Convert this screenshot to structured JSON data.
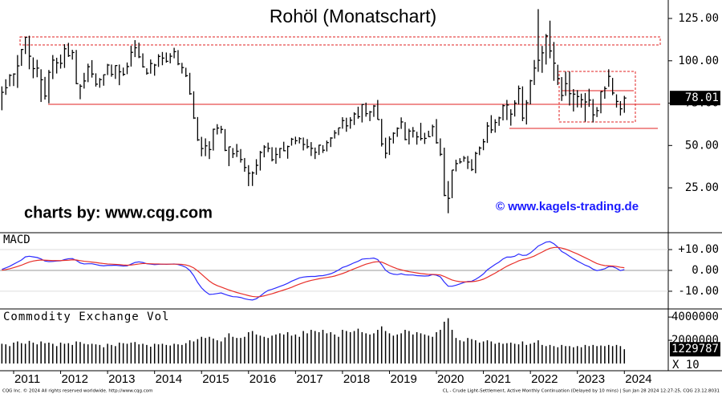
{
  "chart_data": [
    {
      "type": "ohlc",
      "title": "Rohöl (Monatschart)",
      "color": "#000000",
      "annotations": [
        "charts by: www.cqg.com",
        "© www.kagels-trading.de"
      ],
      "categories": [
        null,
        null,
        null,
        "2011",
        null,
        null,
        null,
        null,
        null,
        null,
        null,
        null,
        null,
        null,
        null,
        "2012",
        null,
        null,
        null,
        null,
        null,
        null,
        null,
        null,
        null,
        null,
        null,
        "2013",
        null,
        null,
        null,
        null,
        null,
        null,
        null,
        null,
        null,
        null,
        null,
        "2014",
        null,
        null,
        null,
        null,
        null,
        null,
        null,
        null,
        null,
        null,
        null,
        "2015",
        null,
        null,
        null,
        null,
        null,
        null,
        null,
        null,
        null,
        null,
        null,
        "2016",
        null,
        null,
        null,
        null,
        null,
        null,
        null,
        null,
        null,
        null,
        null,
        "2017",
        null,
        null,
        null,
        null,
        null,
        null,
        null,
        null,
        null,
        null,
        null,
        "2018",
        null,
        null,
        null,
        null,
        null,
        null,
        null,
        null,
        null,
        null,
        null,
        "2019",
        null,
        null,
        null,
        null,
        null,
        null,
        null,
        null,
        null,
        null,
        null,
        "2020",
        null,
        null,
        null,
        null,
        null,
        null,
        null,
        null,
        null,
        null,
        null,
        "2021",
        null,
        null,
        null,
        null,
        null,
        null,
        null,
        null,
        null,
        null,
        null,
        "2022",
        null,
        null,
        null,
        null,
        null,
        null,
        null,
        null,
        null,
        null,
        null,
        "2023",
        null,
        null,
        null,
        null,
        null,
        null,
        null,
        null,
        null,
        null,
        null,
        "2024"
      ],
      "high": [
        84.9,
        89.1,
        92.1,
        92.6,
        103.4,
        107,
        114,
        114.8,
        102,
        100.6,
        95,
        90.5,
        94.6,
        103.4,
        101.8,
        103.7,
        109.8,
        110.6,
        106.5,
        106.4,
        86.2,
        92.9,
        98.3,
        100.4,
        92.6,
        89.8,
        91.9,
        98.2,
        97.8,
        97.4,
        97.8,
        96,
        99,
        108.9,
        112.2,
        110.7,
        104.4,
        95.6,
        100.8,
        98.2,
        103.9,
        105.2,
        104.9,
        104.5,
        107.7,
        106.3,
        98.8,
        95.9,
        92.9,
        82,
        66.8,
        55.1,
        54.2,
        52.5,
        59.9,
        62.6,
        61.6,
        59.7,
        49.3,
        48.5,
        50.9,
        47.9,
        42.6,
        38.4,
        34.7,
        41.9,
        46.8,
        50.2,
        51.7,
        49,
        48.8,
        48.5,
        52.2,
        49.9,
        54.5,
        55.2,
        54.9,
        54.7,
        53.8,
        52,
        48.8,
        50.4,
        50.2,
        52.9,
        54.9,
        59,
        60.5,
        66.7,
        66.4,
        66.7,
        69.6,
        72.9,
        74.5,
        75.3,
        70.4,
        73.9,
        76.9,
        65.7,
        54.6,
        55.4,
        57.8,
        60.7,
        66.6,
        63.8,
        59.9,
        60.9,
        58.1,
        63.4,
        57.5,
        58.7,
        62.3,
        65.6,
        54.2,
        48.7,
        29,
        35.5,
        41.6,
        42.5,
        43.8,
        43.8,
        41.9,
        46.3,
        49.4,
        53.9,
        63.8,
        67.9,
        65.5,
        67,
        74.2,
        76.9,
        71.4,
        76.7,
        85.4,
        84.9,
        76.8,
        88.8,
        100.5,
        130.5,
        108.8,
        115.8,
        123.7,
        111.1,
        97.7,
        90.4,
        93.6,
        93.7,
        83.3,
        82.7,
        80.6,
        81,
        83.5,
        77.4,
        72.7,
        82,
        84.9,
        95,
        89.9,
        80.2,
        76.2,
        79.3
      ],
      "low": [
        70.8,
        79.9,
        84.9,
        85.1,
        84,
        97,
        104,
        95,
        89.7,
        90.3,
        75.7,
        77.1,
        74.9,
        89.2,
        92.5,
        95.4,
        95.8,
        102.3,
        100.7,
        86.2,
        77.3,
        83.6,
        87.4,
        90.1,
        84.8,
        84.1,
        85.3,
        91.6,
        90.6,
        89.3,
        85.6,
        91.1,
        92.1,
        96.6,
        102.2,
        101.6,
        96,
        91.8,
        92.4,
        91.2,
        96.4,
        97.4,
        98.9,
        98.5,
        101.5,
        97.4,
        92.5,
        90.4,
        80,
        65.7,
        52.7,
        43.6,
        43.7,
        42,
        47,
        56.5,
        57.1,
        46.7,
        37.8,
        42.6,
        43.2,
        39.9,
        34.5,
        26,
        26.1,
        32.7,
        35.2,
        43,
        46.1,
        40.6,
        39.2,
        42.5,
        46.6,
        42.2,
        49.9,
        50.7,
        51.2,
        47.1,
        48.2,
        43.8,
        42,
        44.4,
        45.6,
        46.5,
        49.1,
        54.1,
        56.1,
        59.9,
        58.1,
        59.9,
        62.1,
        65.8,
        63.6,
        67,
        64.4,
        66.9,
        65.3,
        49.4,
        42.4,
        44.4,
        51.2,
        55.1,
        59.8,
        53.1,
        50.6,
        54.7,
        50.5,
        52.9,
        50.9,
        55,
        55.3,
        51.1,
        43.8,
        20.1,
        10,
        18.9,
        34.7,
        39.3,
        40.4,
        36.1,
        34.9,
        33.6,
        44.3,
        47.2,
        51.5,
        57.3,
        57.6,
        61.6,
        64.8,
        65,
        61.7,
        67.1,
        74.2,
        64.4,
        62.4,
        74.3,
        85.7,
        93.5,
        92.9,
        97.8,
        101.5,
        88.2,
        85.7,
        76.3,
        79.3,
        73.6,
        70.1,
        72.5,
        72.3,
        64.1,
        72.8,
        63.6,
        66.8,
        69,
        77.6,
        84.6,
        79.7,
        72.4,
        67.7,
        69.3
      ],
      "close": [
        81.4,
        84.1,
        91.4,
        92.2,
        97,
        106.7,
        113.9,
        102.7,
        95.4,
        95.7,
        88.8,
        79.2,
        93.2,
        100.4,
        98.8,
        98.5,
        107.1,
        103,
        104.9,
        86.5,
        85,
        88.1,
        96.5,
        92.2,
        86.2,
        88.9,
        91.8,
        97.5,
        92,
        97.2,
        93.5,
        92,
        96.6,
        105,
        107.7,
        102.3,
        96.4,
        92.7,
        98.4,
        97.5,
        102.6,
        101.6,
        99.7,
        102.7,
        105.4,
        98.2,
        96,
        91.2,
        80.5,
        66.2,
        53.3,
        48.2,
        49.8,
        47.6,
        59.6,
        60.3,
        59.5,
        47.1,
        49.2,
        45.1,
        46.6,
        41.7,
        37,
        33.6,
        33.8,
        38.3,
        45.9,
        49.1,
        48.3,
        41.6,
        44.7,
        48.2,
        46.9,
        49.4,
        53.7,
        52.8,
        54,
        50.6,
        49.3,
        48.3,
        46,
        50.2,
        47.2,
        51.7,
        54.4,
        57.4,
        60.4,
        64.7,
        61.6,
        64.9,
        68.6,
        67,
        74.2,
        68.8,
        69.8,
        73.3,
        65.3,
        50.9,
        45.4,
        53.8,
        57.2,
        60.1,
        63.9,
        53.5,
        58.5,
        58.6,
        55.1,
        54.1,
        54.2,
        55.2,
        61.1,
        51.6,
        44.8,
        20.5,
        18.8,
        35.5,
        39.3,
        40.3,
        42.6,
        40.2,
        35.8,
        45.3,
        48.5,
        52.2,
        61.5,
        59.2,
        63.6,
        66.3,
        73.5,
        73.9,
        68.5,
        75,
        83.6,
        66.2,
        75.2,
        88.2,
        95.7,
        100.3,
        104.7,
        114.7,
        105.8,
        98.6,
        89.6,
        79.5,
        86.5,
        80.6,
        80.3,
        78.9,
        77,
        75.7,
        76.8,
        68.1,
        70.6,
        81.8,
        83.6,
        90.8,
        81,
        76,
        71.65,
        78.01
      ],
      "ylim": [
        -1.5,
        135.9
      ],
      "yticks": [
        {
          "value": 25,
          "label": "25.00"
        },
        {
          "value": 50,
          "label": "50.00"
        },
        {
          "value": 75,
          "label": "75.00"
        },
        {
          "value": 100,
          "label": "100.00"
        },
        {
          "value": 125,
          "label": "125.00"
        }
      ]
    },
    {
      "type": "line",
      "title": "MACD",
      "series": [
        {
          "color": "#2b2bff",
          "values": [
            0.5,
            1.2,
            2.0,
            3,
            4,
            5,
            6.5,
            6.8,
            6.5,
            6.2,
            5.5,
            4.5,
            4.2,
            4.3,
            4.5,
            4.6,
            5.2,
            5.6,
            5.7,
            4.8,
            3.6,
            3.1,
            3.2,
            3.2,
            2.8,
            2.4,
            2.2,
            2.4,
            2.4,
            2.5,
            2.3,
            2.1,
            2.2,
            3,
            3.8,
            4.1,
            3.8,
            3.2,
            3,
            2.8,
            2.9,
            3,
            2.9,
            3,
            3.1,
            2.8,
            2.3,
            1.5,
            0,
            -2.5,
            -5.8,
            -8.4,
            -10.2,
            -11.5,
            -11.4,
            -11.1,
            -10.8,
            -11.5,
            -12.1,
            -12.6,
            -12.7,
            -13,
            -13.6,
            -14,
            -14.2,
            -13.6,
            -12.3,
            -10.8,
            -9.6,
            -9.1,
            -8.4,
            -7.7,
            -7,
            -6.2,
            -5.2,
            -4.4,
            -3.6,
            -3.2,
            -3,
            -2.9,
            -2.9,
            -2.6,
            -2.5,
            -2.1,
            -1.6,
            -0.8,
            0.2,
            1.4,
            2,
            2.8,
            3.7,
            4.4,
            5.4,
            5.6,
            5.7,
            5.9,
            5.2,
            2.8,
            0.1,
            -1.2,
            -1.8,
            -2,
            -1.6,
            -2.1,
            -2.2,
            -2.2,
            -2.5,
            -2.6,
            -2.7,
            -2.6,
            -2,
            -2.3,
            -3.1,
            -5.6,
            -7.6,
            -7.6,
            -7.1,
            -6.5,
            -5.8,
            -5.3,
            -5.2,
            -4.3,
            -3.1,
            -1.7,
            0.3,
            1.6,
            2.9,
            4,
            5.5,
            6.4,
            6.4,
            6.8,
            7.9,
            7.2,
            7.3,
            8.4,
            10,
            11.7,
            12.6,
            13.6,
            13.8,
            12.8,
            11.2,
            9.1,
            8.1,
            6.8,
            5.6,
            4.5,
            3.5,
            2.5,
            1.8,
            0.6,
            -0.1,
            0.3,
            0.8,
            1.8,
            1.8,
            1.0,
            -0.1,
            0.4
          ]
        },
        {
          "color": "#e8302a",
          "values": [
            0.1,
            0.4,
            0.8,
            1.3,
            1.9,
            2.5,
            3.3,
            4,
            4.5,
            4.8,
            5,
            4.9,
            4.8,
            4.7,
            4.7,
            4.7,
            4.8,
            4.9,
            5.1,
            5,
            4.7,
            4.4,
            4.2,
            4,
            3.8,
            3.5,
            3.3,
            3.1,
            3,
            2.9,
            2.8,
            2.6,
            2.5,
            2.6,
            2.8,
            3.1,
            3.3,
            3.3,
            3.2,
            3.1,
            3.1,
            3,
            3,
            3,
            3,
            3,
            2.9,
            2.6,
            2.1,
            1.2,
            -0.2,
            -1.8,
            -3.5,
            -5.1,
            -6.4,
            -7.3,
            -8,
            -8.7,
            -9.4,
            -10,
            -10.6,
            -11.1,
            -11.6,
            -12.1,
            -12.5,
            -12.7,
            -12.6,
            -12.2,
            -11.7,
            -11.2,
            -10.6,
            -10,
            -9.4,
            -8.8,
            -8.1,
            -7.3,
            -6.6,
            -5.9,
            -5.3,
            -4.8,
            -4.4,
            -4,
            -3.7,
            -3.4,
            -3.1,
            -2.7,
            -2.1,
            -1.5,
            -0.8,
            0,
            0.8,
            1.5,
            2.3,
            3,
            3.5,
            4,
            4.2,
            4,
            3.2,
            2.3,
            1.5,
            0.8,
            0.3,
            -0.2,
            -0.6,
            -0.9,
            -1.2,
            -1.5,
            -1.7,
            -1.9,
            -1.9,
            -2,
            -2.2,
            -2.9,
            -3.8,
            -4.6,
            -5.1,
            -5.4,
            -5.5,
            -5.5,
            -5.4,
            -5.2,
            -4.8,
            -4.2,
            -3.3,
            -2.3,
            -1.3,
            -0.2,
            0.9,
            2,
            2.9,
            3.7,
            4.6,
            5.2,
            5.6,
            6.2,
            6.9,
            7.9,
            8.8,
            9.8,
            10.6,
            11,
            11.1,
            10.7,
            10.2,
            9.5,
            8.7,
            7.9,
            7,
            6.1,
            5.2,
            4.2,
            3.3,
            2.7,
            2.3,
            2.2,
            2.1,
            1.9,
            1.5,
            1.3
          ]
        }
      ],
      "ylim": [
        -18.5,
        18.1
      ],
      "yticks": [
        {
          "value": -10,
          "label": "-10.00"
        },
        {
          "value": 0,
          "label": "0.00"
        },
        {
          "value": 10,
          "label": "+10.00"
        }
      ]
    },
    {
      "type": "bar",
      "title": "Commodity Exchange Vol",
      "color": "#000000",
      "scale_label": "X 10",
      "values": [
        1700000,
        1650000,
        1500000,
        1800000,
        1900000,
        1750000,
        1700000,
        1950000,
        1800000,
        1650000,
        1900000,
        1750000,
        1800000,
        1700000,
        1500000,
        1800000,
        1700000,
        1750000,
        1600000,
        1900000,
        1850000,
        1700000,
        1650000,
        1700000,
        1650000,
        1600000,
        1400000,
        1700000,
        1600000,
        1500000,
        1800000,
        1750000,
        1700000,
        1800000,
        1850000,
        1650000,
        1700000,
        1600000,
        1450000,
        1700000,
        1650000,
        1700000,
        1600000,
        1550000,
        1700000,
        1650000,
        1600000,
        1750000,
        2000000,
        1900000,
        2100000,
        2300000,
        2200000,
        2300000,
        2150000,
        2000000,
        1900000,
        2250000,
        2600000,
        2300000,
        2200000,
        2200000,
        2300000,
        2700000,
        2800000,
        2500000,
        2400000,
        2300000,
        2200000,
        2400000,
        2500000,
        2600000,
        2500000,
        2700000,
        2400000,
        2500000,
        2300000,
        2800000,
        2600000,
        2900000,
        2800000,
        2700000,
        2900000,
        2600000,
        2700000,
        2500000,
        2300000,
        2900000,
        2800000,
        2700000,
        2800000,
        3000000,
        2700000,
        2600000,
        2500000,
        2600000,
        2900000,
        3200000,
        2800000,
        2600000,
        2400000,
        2500000,
        2600000,
        2900000,
        2800000,
        2500000,
        2700000,
        2600000,
        2500000,
        2400000,
        2300000,
        2700000,
        2900000,
        3600000,
        3900000,
        2900000,
        2200000,
        2000000,
        1900000,
        2200000,
        2100000,
        2000000,
        1800000,
        1900000,
        2000000,
        1900000,
        1700000,
        1800000,
        1700000,
        1750000,
        1800000,
        1700000,
        1650000,
        1900000,
        1600000,
        1700000,
        1800000,
        2000000,
        1600000,
        1500000,
        1600000,
        1500000,
        1400000,
        1600000,
        1500000,
        1500000,
        1400000,
        1500000,
        1400000,
        1600000,
        1500000,
        1600000,
        1500000,
        1550000,
        1500000,
        1600000,
        1500000,
        1600000,
        1500000,
        1229787
      ],
      "ylim": [
        0,
        4700000
      ],
      "yticks": [
        2000000,
        4000000
      ]
    }
  ],
  "footer": {
    "left": "CQG Inc. © 2024 All rights reserved worldwide. http://www.cqg.com",
    "right": "CL - Crude Light-Settlement, Active Monthly Continuation (Delayed by 10 mins) | Sun Jan 28 2024 12:27:25, CQG 23.12.8031"
  }
}
